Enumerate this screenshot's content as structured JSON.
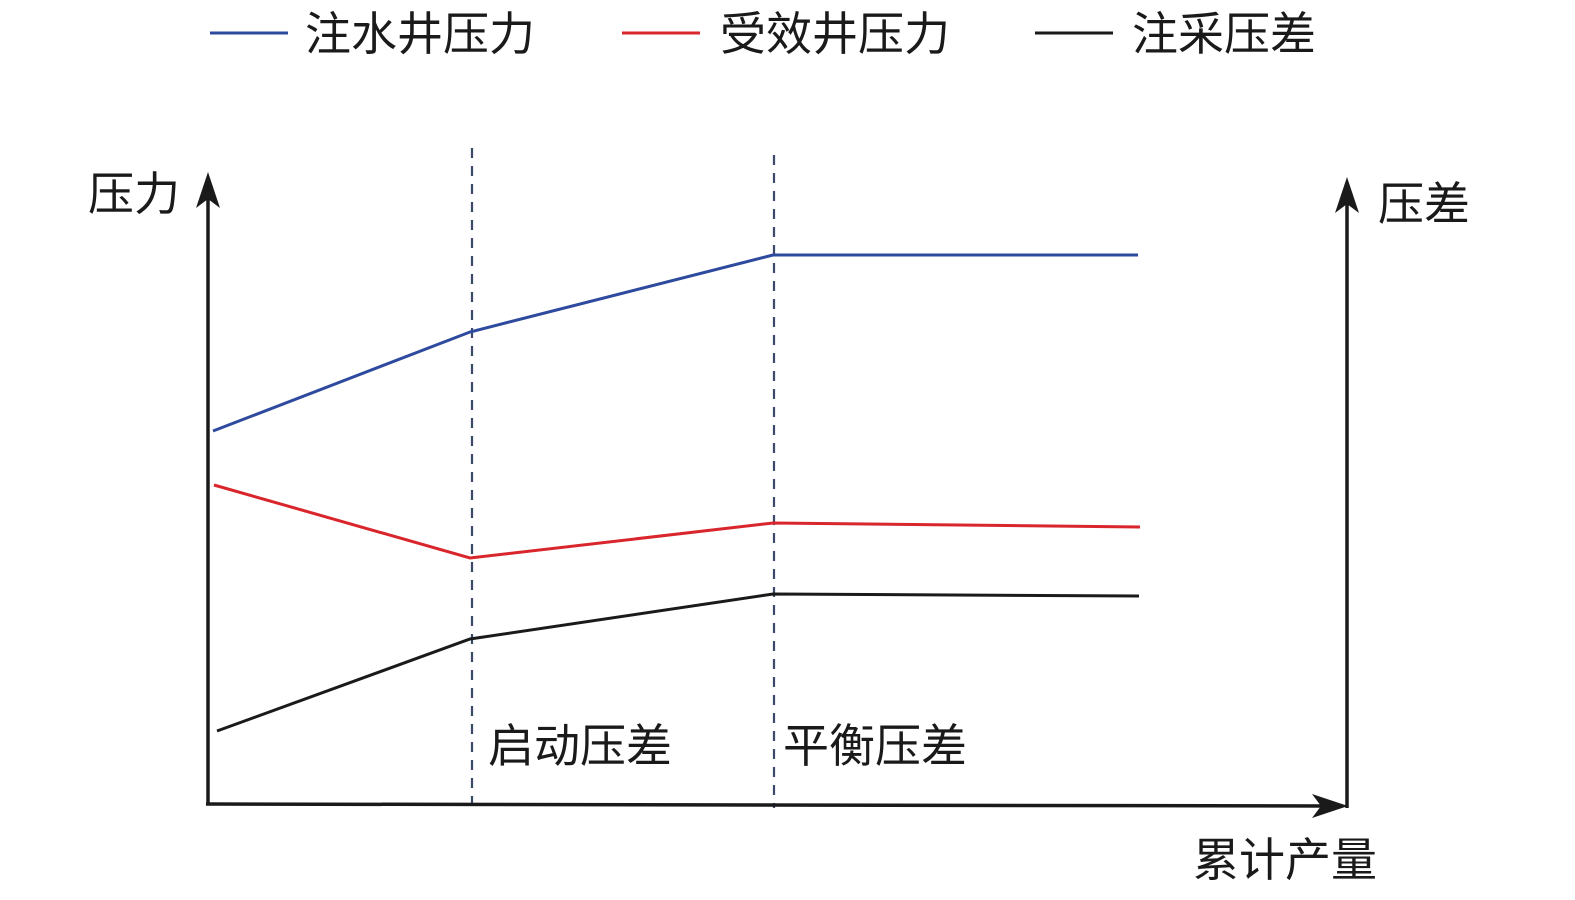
{
  "legend": {
    "items": [
      {
        "label": "注水井压力",
        "color": "#2e4a9e"
      },
      {
        "label": "受效井压力",
        "color": "#d9262c"
      },
      {
        "label": "注采压差",
        "color": "#1a1a1a"
      }
    ]
  },
  "axes": {
    "left_label": "压力",
    "right_label": "压差",
    "x_label": "累计产量"
  },
  "phases": [
    {
      "label": "启动压差"
    },
    {
      "label": "平衡压差"
    }
  ],
  "colors": {
    "axis": "#1a1a1a",
    "divider": "#3a4a66"
  }
}
